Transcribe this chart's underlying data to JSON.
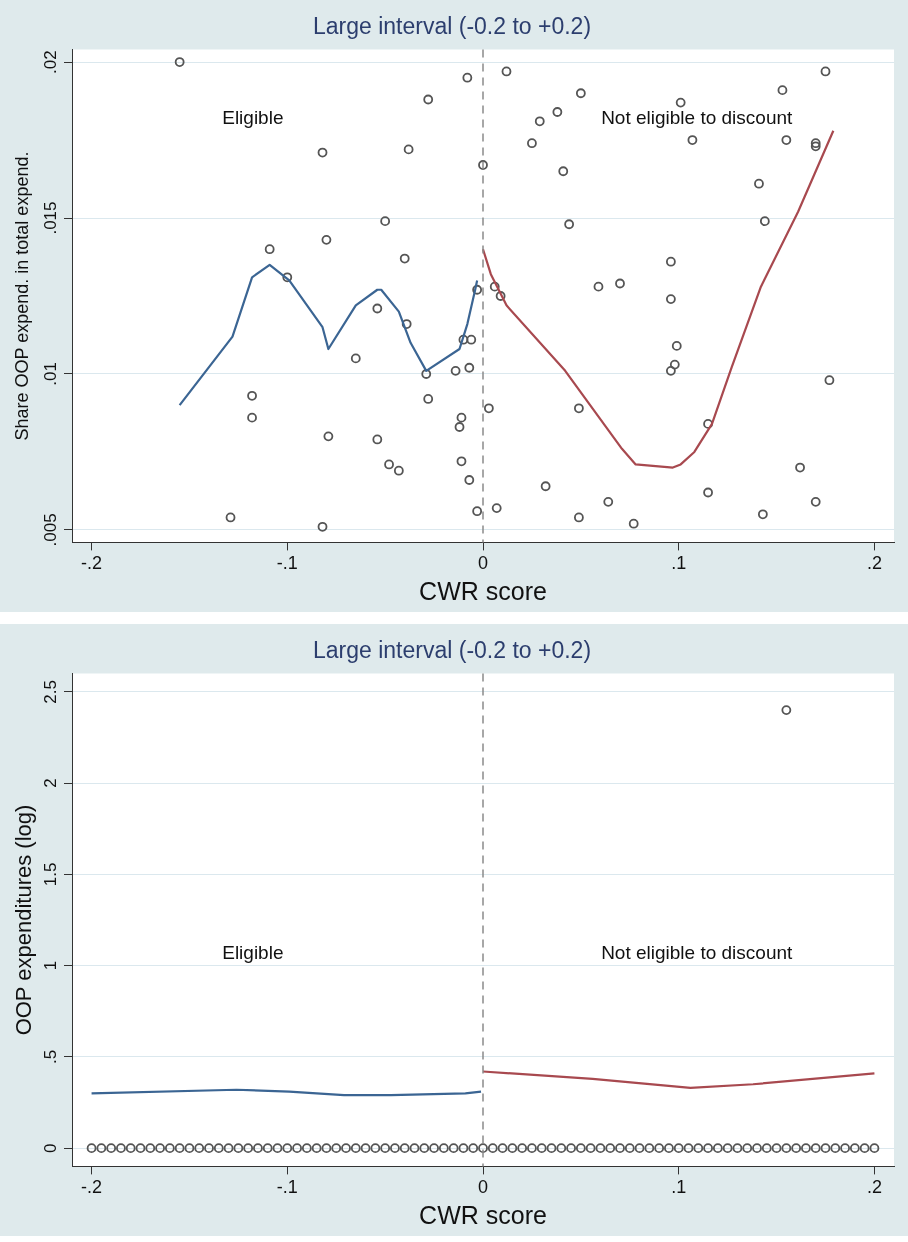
{
  "chart_data": [
    {
      "type": "scatter",
      "title": "Large interval (-0.2 to +0.2)",
      "xlabel": "CWR score",
      "ylabel": "Share OOP expend. in total expend.",
      "xlim": [
        -0.21,
        0.21
      ],
      "ylim": [
        0.0046,
        0.0204
      ],
      "xticks": [
        {
          "value": -0.2,
          "label": "-.2"
        },
        {
          "value": -0.1,
          "label": "-.1"
        },
        0,
        {
          "value": 0.1,
          "label": ".1"
        },
        {
          "value": 0.2,
          "label": ".2"
        }
      ],
      "yticks": [
        {
          "value": 0.005,
          "label": ".005"
        },
        {
          "value": 0.01,
          "label": ".01"
        },
        {
          "value": 0.015,
          "label": ".015"
        },
        {
          "value": 0.02,
          "label": ".02"
        }
      ],
      "grid": "y",
      "legend": false,
      "ref_lines": [
        {
          "axis": "x",
          "value": 0,
          "line_style": "dashed",
          "color": "#8a8a8a"
        }
      ],
      "annotations": [
        "Eligible",
        "Not eligible to discount"
      ],
      "series": [
        {
          "marker": "circle",
          "color": "#555555",
          "x": [
            -0.155,
            -0.008,
            -0.028,
            -0.082,
            -0.038,
            -0.05,
            -0.109,
            -0.08,
            -0.04,
            -0.1,
            -0.003,
            -0.054,
            -0.039,
            -0.065,
            -0.01,
            -0.006,
            -0.007,
            -0.014,
            -0.029,
            -0.028,
            -0.118,
            -0.118,
            -0.011,
            -0.012,
            -0.079,
            -0.054,
            -0.048,
            -0.043,
            -0.011,
            -0.007,
            -0.003,
            -0.129,
            -0.082,
            0.012,
            0.05,
            0.038,
            0.029,
            0.025,
            0.0,
            0.041,
            0.101,
            0.107,
            0.153,
            0.175,
            0.155,
            0.17,
            0.17,
            0.141,
            0.144,
            0.044,
            0.096,
            0.059,
            0.07,
            0.006,
            0.009,
            0.096,
            0.099,
            0.098,
            0.096,
            0.177,
            0.003,
            0.049,
            0.115,
            0.032,
            0.115,
            0.162,
            0.007,
            0.064,
            0.049,
            0.077,
            0.143,
            0.17
          ],
          "values": [
            0.02,
            0.0195,
            0.0188,
            0.0171,
            0.0172,
            0.0149,
            0.014,
            0.0143,
            0.0137,
            0.0131,
            0.0127,
            0.0121,
            0.0116,
            0.0105,
            0.0111,
            0.0111,
            0.0102,
            0.0101,
            0.01,
            0.0092,
            0.0093,
            0.0086,
            0.0086,
            0.0083,
            0.008,
            0.0079,
            0.0071,
            0.0069,
            0.0072,
            0.0066,
            0.0056,
            0.0054,
            0.0051,
            0.0197,
            0.019,
            0.0184,
            0.0181,
            0.0174,
            0.0167,
            0.0165,
            0.0187,
            0.0175,
            0.0191,
            0.0197,
            0.0175,
            0.0174,
            0.0173,
            0.0161,
            0.0149,
            0.0148,
            0.0136,
            0.0128,
            0.0129,
            0.0128,
            0.0125,
            0.0124,
            0.0109,
            0.0103,
            0.0101,
            0.0098,
            0.0089,
            0.0089,
            0.0084,
            0.0064,
            0.0062,
            0.007,
            0.0057,
            0.0059,
            0.0054,
            0.0052,
            0.0055,
            0.0059
          ]
        },
        {
          "type": "line",
          "marker": "none",
          "color": "#3b6593",
          "x": [
            -0.155,
            -0.128,
            -0.118,
            -0.109,
            -0.099,
            -0.082,
            -0.079,
            -0.065,
            -0.054,
            -0.052,
            -0.043,
            -0.037,
            -0.029,
            -0.012,
            -0.008,
            -0.004,
            -0.003
          ],
          "values": [
            0.009,
            0.0112,
            0.0131,
            0.0135,
            0.013,
            0.0115,
            0.0108,
            0.0122,
            0.0127,
            0.0127,
            0.012,
            0.011,
            0.0101,
            0.0108,
            0.0116,
            0.0127,
            0.013
          ]
        },
        {
          "type": "line",
          "marker": "none",
          "color": "#a8494f",
          "x": [
            0.0,
            0.004,
            0.012,
            0.042,
            0.071,
            0.078,
            0.097,
            0.101,
            0.108,
            0.117,
            0.127,
            0.142,
            0.161,
            0.179
          ],
          "values": [
            0.014,
            0.0132,
            0.0122,
            0.0101,
            0.0076,
            0.0071,
            0.007,
            0.0071,
            0.0075,
            0.0084,
            0.0102,
            0.0128,
            0.0152,
            0.0178
          ]
        }
      ]
    },
    {
      "type": "scatter",
      "title": "Large interval (-0.2 to +0.2)",
      "xlabel": "CWR score",
      "ylabel": "OOP expenditures (log)",
      "xlim": [
        -0.21,
        0.21
      ],
      "ylim": [
        -0.1,
        2.6
      ],
      "xticks": [
        {
          "value": -0.2,
          "label": "-.2"
        },
        {
          "value": -0.1,
          "label": "-.1"
        },
        0,
        {
          "value": 0.1,
          "label": ".1"
        },
        {
          "value": 0.2,
          "label": ".2"
        }
      ],
      "yticks": [
        0,
        {
          "value": 0.5,
          "label": ".5"
        },
        1,
        1.5,
        2,
        2.5
      ],
      "grid": "y",
      "legend": false,
      "ref_lines": [
        {
          "axis": "x",
          "value": 0,
          "line_style": "dashed",
          "color": "#8a8a8a"
        }
      ],
      "annotations": [
        "Eligible",
        "Not eligible to discount"
      ],
      "series": [
        {
          "marker": "circle",
          "color": "#555555",
          "x": [
            -0.2,
            -0.195,
            -0.19,
            -0.185,
            -0.18,
            -0.175,
            -0.17,
            -0.165,
            -0.16,
            -0.155,
            -0.15,
            -0.145,
            -0.14,
            -0.135,
            -0.13,
            -0.125,
            -0.12,
            -0.115,
            -0.11,
            -0.105,
            -0.1,
            -0.095,
            -0.09,
            -0.085,
            -0.08,
            -0.075,
            -0.07,
            -0.065,
            -0.06,
            -0.055,
            -0.05,
            -0.045,
            -0.04,
            -0.035,
            -0.03,
            -0.025,
            -0.02,
            -0.015,
            -0.01,
            -0.005,
            0.0,
            0.005,
            0.01,
            0.015,
            0.02,
            0.025,
            0.03,
            0.035,
            0.04,
            0.045,
            0.05,
            0.055,
            0.06,
            0.065,
            0.07,
            0.075,
            0.08,
            0.085,
            0.09,
            0.095,
            0.1,
            0.105,
            0.11,
            0.115,
            0.12,
            0.125,
            0.13,
            0.135,
            0.14,
            0.145,
            0.15,
            0.155,
            0.16,
            0.165,
            0.17,
            0.175,
            0.18,
            0.185,
            0.19,
            0.195,
            0.2,
            0.155
          ],
          "values": [
            0,
            0,
            0,
            0,
            0,
            0,
            0,
            0,
            0,
            0,
            0,
            0,
            0,
            0,
            0,
            0,
            0,
            0,
            0,
            0,
            0,
            0,
            0,
            0,
            0,
            0,
            0,
            0,
            0,
            0,
            0,
            0,
            0,
            0,
            0,
            0,
            0,
            0,
            0,
            0,
            0,
            0,
            0,
            0,
            0,
            0,
            0,
            0,
            0,
            0,
            0,
            0,
            0,
            0,
            0,
            0,
            0,
            0,
            0,
            0,
            0,
            0,
            0,
            0,
            0,
            0,
            0,
            0,
            0,
            0,
            0,
            0,
            0,
            0,
            0,
            0,
            0,
            0,
            0,
            0,
            0,
            2.4
          ]
        },
        {
          "type": "line",
          "marker": "none",
          "color": "#3b6593",
          "x": [
            -0.2,
            -0.126,
            -0.099,
            -0.071,
            -0.047,
            -0.009,
            -0.001
          ],
          "values": [
            0.3,
            0.32,
            0.31,
            0.29,
            0.29,
            0.3,
            0.31
          ]
        },
        {
          "type": "line",
          "marker": "none",
          "color": "#a8494f",
          "x": [
            0.0,
            0.056,
            0.106,
            0.138,
            0.2
          ],
          "values": [
            0.42,
            0.38,
            0.33,
            0.35,
            0.41
          ]
        }
      ]
    }
  ]
}
